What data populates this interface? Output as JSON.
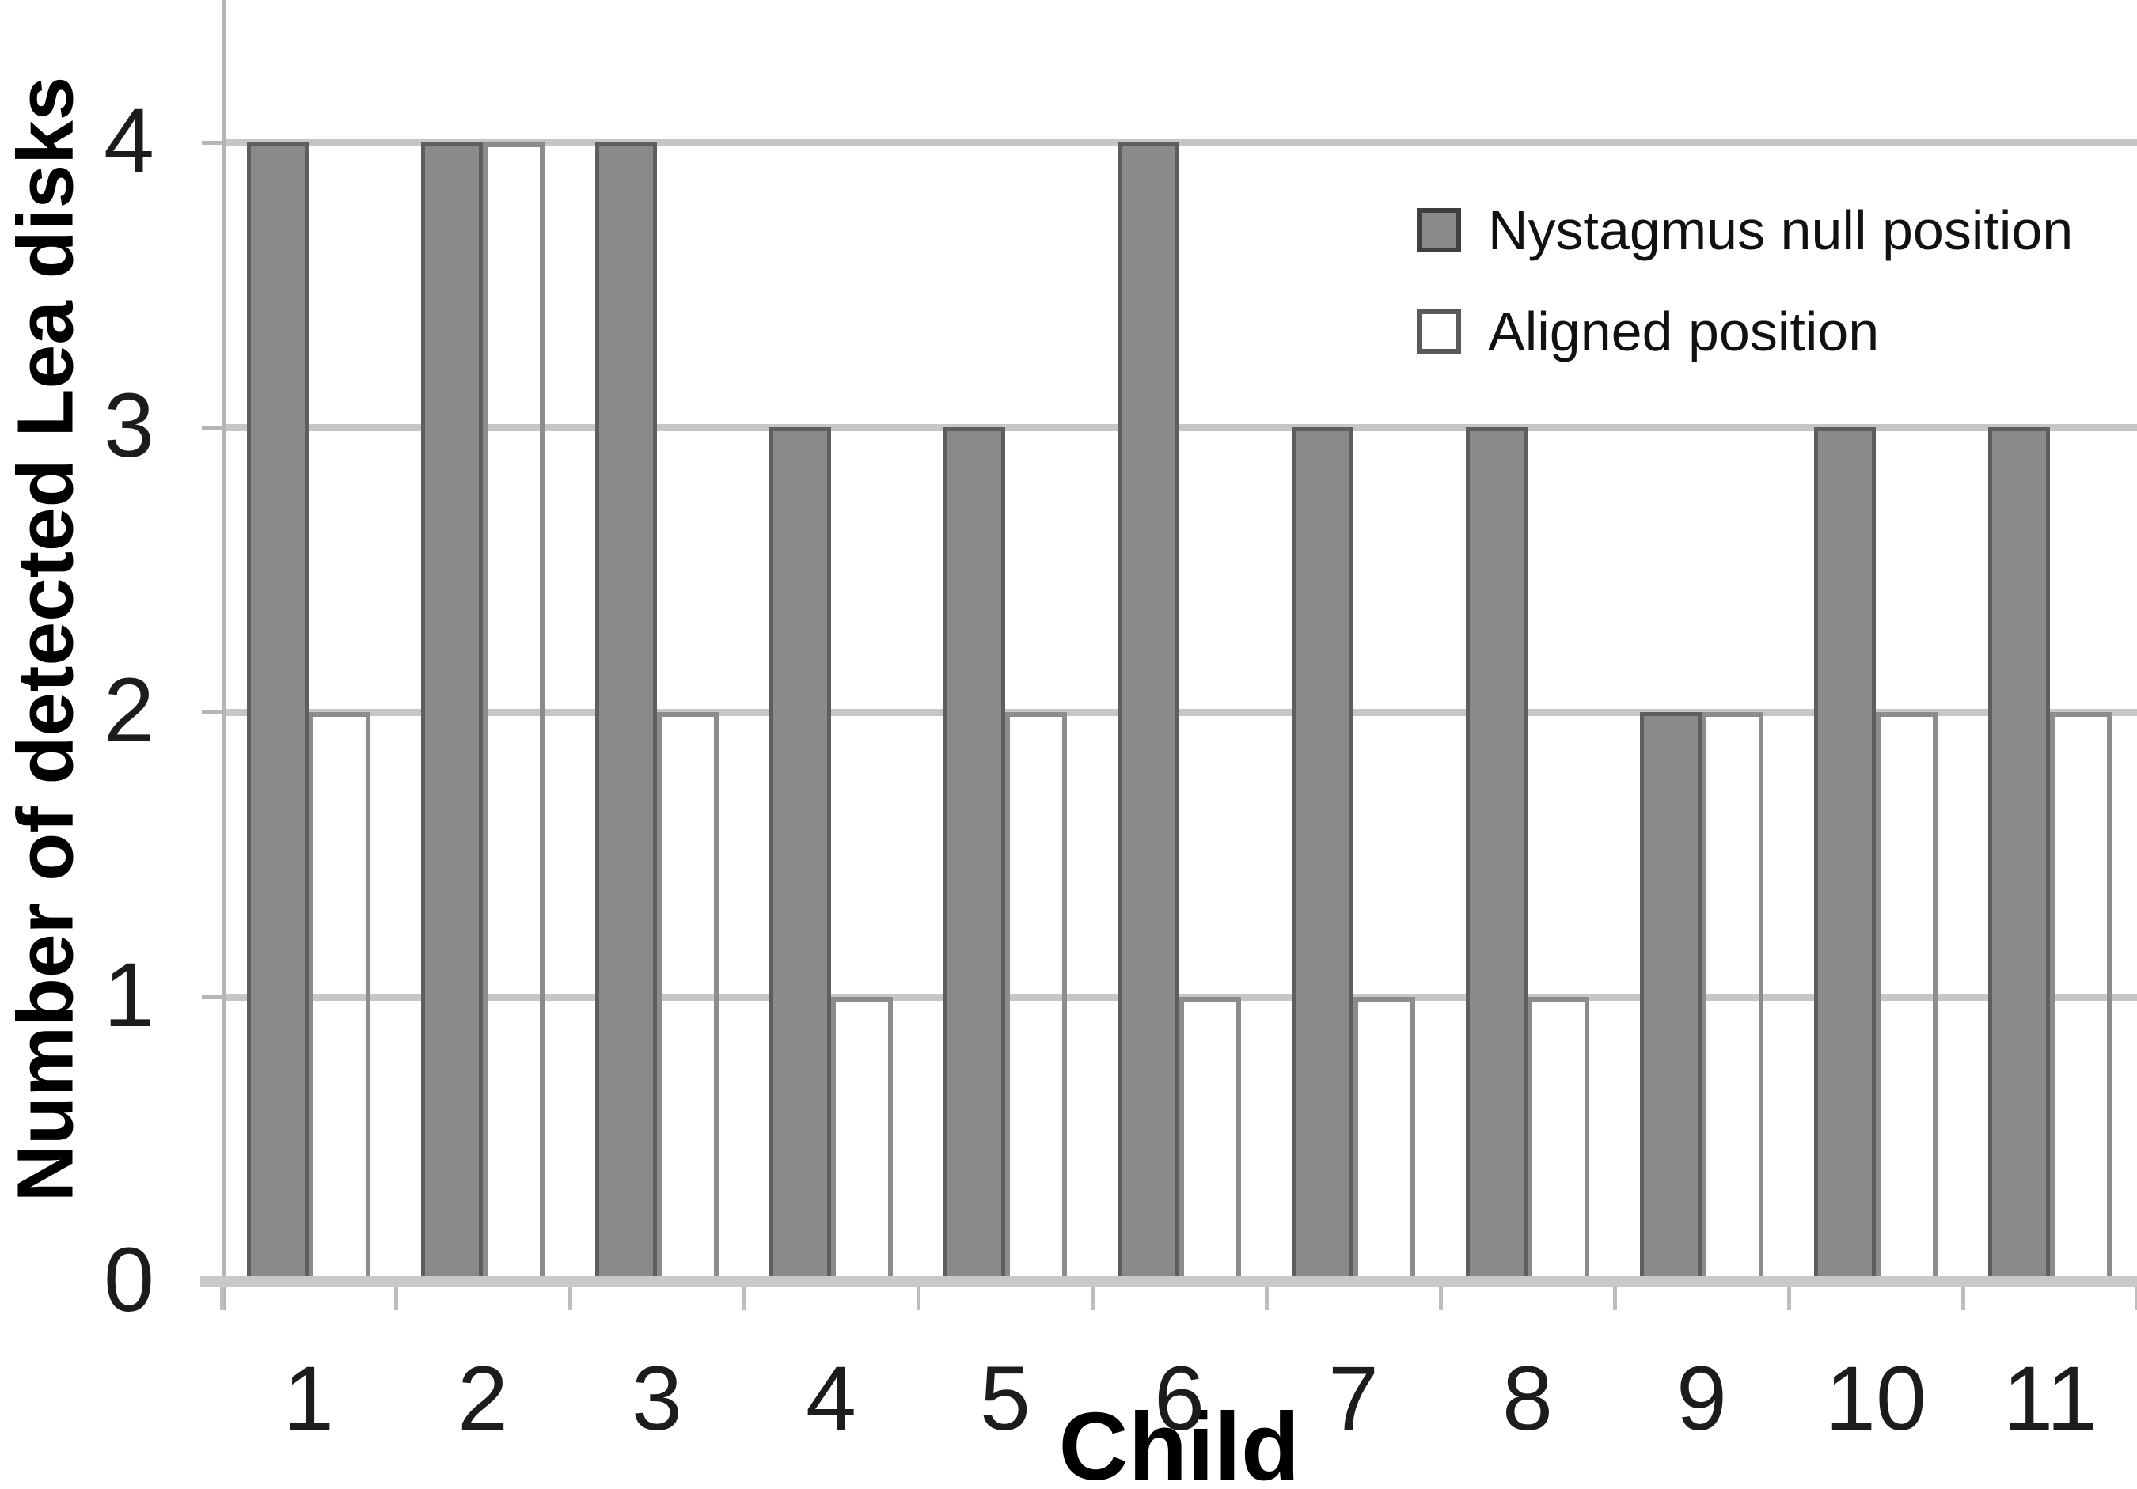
{
  "chart_data": {
    "type": "bar",
    "title": "",
    "xlabel": "Child",
    "ylabel": "Number of detected Lea disks",
    "categories": [
      "1",
      "2",
      "3",
      "4",
      "5",
      "6",
      "7",
      "8",
      "9",
      "10",
      "11"
    ],
    "series": [
      {
        "name": "Nystagmus null position",
        "values": [
          4,
          4,
          4,
          3,
          3,
          4,
          3,
          3,
          2,
          3,
          3
        ],
        "fill": "#8a8a8a",
        "border": "#5e5e5e",
        "swatch_border": "#3f3f3f"
      },
      {
        "name": "Aligned position",
        "values": [
          2,
          4,
          2,
          1,
          2,
          1,
          1,
          1,
          2,
          2,
          2
        ],
        "fill": "none",
        "border": "#8c8c8c",
        "swatch_border": "#5a5a5a"
      }
    ],
    "ylim": [
      0,
      4
    ],
    "yticks": [
      0,
      1,
      2,
      3,
      4
    ],
    "grid": true,
    "legend_position": "upper-right",
    "colors": {
      "gridline": "#c6c6c6",
      "baseline": "#c9c9c9",
      "axis_line": "#b5b5b5",
      "boundary_tick": "#bdbdbd",
      "tick_text": "#1c1c1c",
      "title_text": "#000000"
    }
  }
}
